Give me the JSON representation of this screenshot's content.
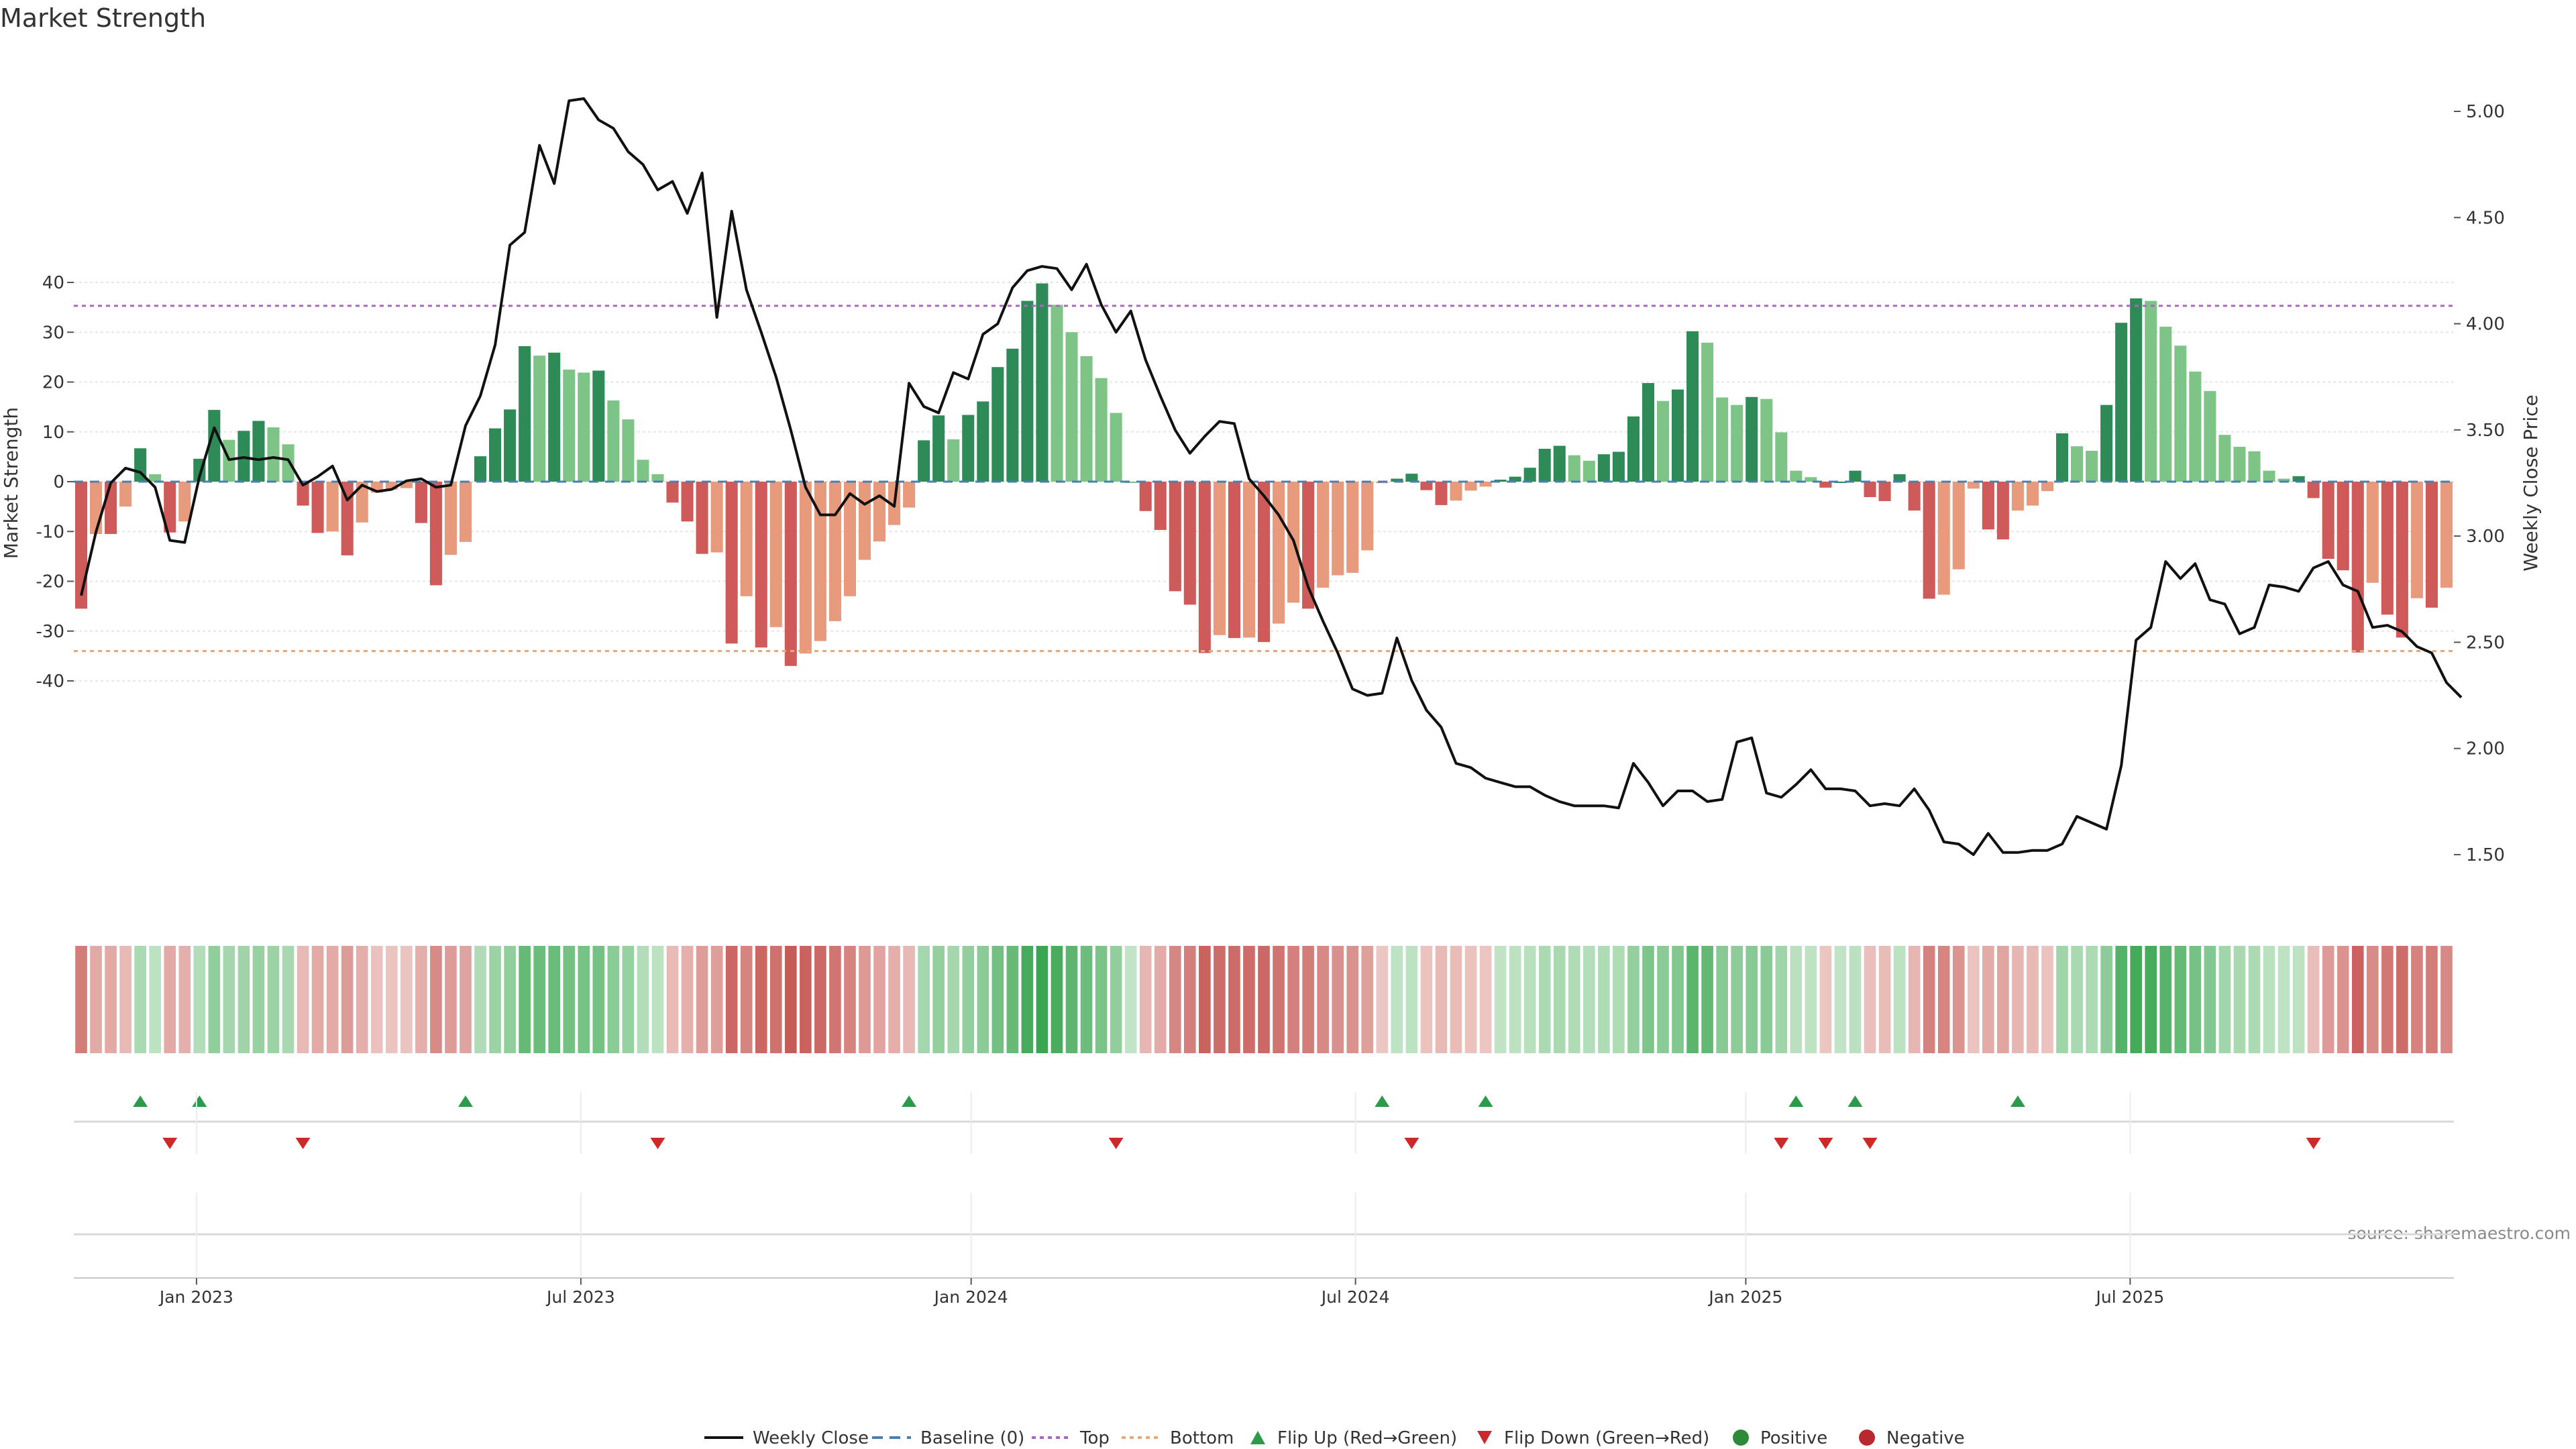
{
  "chart_data": {
    "type": "bar",
    "title": "Market Strength",
    "ylabel": "Market Strength",
    "y2label": "Weekly Close Price",
    "ylim": [
      -43,
      40
    ],
    "y2lim": [
      1.36,
      5.22
    ],
    "yticks": [
      40,
      30,
      20,
      10,
      0,
      -10,
      -20,
      -30,
      -40
    ],
    "y2ticks": [
      5.0,
      4.5,
      4.0,
      3.5,
      3.0,
      2.5,
      2.0,
      1.5
    ],
    "top_threshold": 35.3,
    "bottom_threshold": -34.0,
    "x_ticks": [
      "Jan 2023",
      "Jul 2023",
      "Jan 2024",
      "Jul 2024",
      "Jan 2025",
      "Jul 2025"
    ],
    "x_tick_week_index": [
      8.3,
      34.3,
      60.7,
      86.7,
      113.1,
      139.1
    ],
    "strength": [
      -25.5,
      -10.5,
      -10.5,
      -5,
      6.7,
      1.5,
      -10.2,
      -8,
      4.6,
      14.4,
      8.4,
      10.2,
      12.2,
      10.9,
      7.5,
      -4.8,
      -10.3,
      -10,
      -14.8,
      -8.2,
      -2.2,
      -1.6,
      -1.3,
      -8.3,
      -20.8,
      -14.7,
      -12.1,
      5.1,
      10.7,
      14.5,
      27.2,
      25.3,
      25.9,
      22.5,
      21.9,
      22.3,
      16.3,
      12.5,
      4.4,
      1.5,
      -4.2,
      -8,
      -14.5,
      -14.2,
      -32.5,
      -23,
      -33.3,
      -29.2,
      -37,
      -34.5,
      -32,
      -28,
      -23,
      -15.7,
      -12,
      -8.7,
      -5.2,
      8.3,
      13.3,
      8.5,
      13.4,
      16.1,
      23,
      26.7,
      36.3,
      39.8,
      35.5,
      30,
      25.2,
      20.8,
      13.8,
      0,
      -5.9,
      -9.7,
      -22,
      -24.7,
      -34.4,
      -30.8,
      -31.4,
      -31.3,
      -32.2,
      -28.5,
      -24.3,
      -25.5,
      -21.3,
      -18.8,
      -18.3,
      -13.8,
      -0.3,
      0.6,
      1.6,
      -1.7,
      -4.7,
      -3.8,
      -1.8,
      -1,
      0.4,
      1,
      2.8,
      6.6,
      7.2,
      5.3,
      4.2,
      5.5,
      6,
      13.1,
      19.8,
      16.2,
      18.5,
      30.2,
      27.9,
      16.9,
      15.4,
      17,
      16.6,
      9.9,
      2.2,
      0.9,
      -1.2,
      0,
      2.2,
      -3.1,
      -3.9,
      1.5,
      -5.8,
      -23.5,
      -22.7,
      -17.6,
      -1.4,
      -9.6,
      -11.6,
      -5.8,
      -4.8,
      -1.9,
      9.7,
      7.1,
      6.2,
      15.4,
      31.9,
      36.8,
      36.3,
      31.1,
      27.3,
      22.1,
      18.2,
      9.4,
      7,
      6.1,
      2.2,
      0.6,
      1.1,
      -3.3,
      -15.5,
      -17.8,
      -34.3,
      -20.3,
      -26.7,
      -31.3,
      -23.4,
      -25.3,
      -21.3
    ],
    "weekly_close": [
      2.72,
      3.02,
      3.25,
      3.32,
      3.3,
      3.23,
      2.98,
      2.97,
      3.28,
      3.51,
      3.36,
      3.37,
      3.36,
      3.37,
      3.36,
      3.24,
      3.28,
      3.33,
      3.17,
      3.24,
      3.21,
      3.22,
      3.26,
      3.27,
      3.23,
      3.24,
      3.52,
      3.66,
      3.9,
      4.37,
      4.43,
      4.84,
      4.66,
      5.05,
      5.06,
      4.96,
      4.92,
      4.81,
      4.75,
      4.63,
      4.67,
      4.52,
      4.71,
      4.03,
      4.53,
      4.16,
      3.96,
      3.75,
      3.5,
      3.23,
      3.1,
      3.1,
      3.2,
      3.15,
      3.19,
      3.14,
      3.72,
      3.61,
      3.58,
      3.77,
      3.74,
      3.95,
      4.0,
      4.17,
      4.25,
      4.27,
      4.26,
      4.16,
      4.28,
      4.09,
      3.96,
      4.06,
      3.83,
      3.66,
      3.5,
      3.39,
      3.47,
      3.54,
      3.53,
      3.27,
      3.19,
      3.1,
      2.98,
      2.76,
      2.6,
      2.45,
      2.28,
      2.25,
      2.26,
      2.52,
      2.32,
      2.18,
      2.1,
      1.93,
      1.91,
      1.86,
      1.84,
      1.82,
      1.82,
      1.78,
      1.75,
      1.73,
      1.73,
      1.73,
      1.72,
      1.93,
      1.84,
      1.73,
      1.8,
      1.8,
      1.75,
      1.76,
      2.03,
      2.05,
      1.79,
      1.77,
      1.83,
      1.9,
      1.81,
      1.81,
      1.8,
      1.73,
      1.74,
      1.73,
      1.81,
      1.71,
      1.56,
      1.55,
      1.5,
      1.6,
      1.51,
      1.51,
      1.52,
      1.52,
      1.55,
      1.68,
      1.65,
      1.62,
      1.92,
      2.51,
      2.57,
      2.88,
      2.8,
      2.87,
      2.7,
      2.68,
      2.54,
      2.57,
      2.77,
      2.76,
      2.74,
      2.85,
      2.88,
      2.77,
      2.74,
      2.57,
      2.58,
      2.55,
      2.48,
      2.45,
      2.31,
      2.24
    ],
    "flip_up_week_index": [
      4,
      8,
      26,
      56,
      88,
      95,
      116,
      120,
      131
    ],
    "flip_down_week_index": [
      6,
      15,
      39,
      70,
      90,
      115,
      118,
      121,
      151
    ],
    "legend": [
      "Weekly Close",
      "Baseline (0)",
      "Top",
      "Bottom",
      "Flip Up (Red→Green)",
      "Flip Down (Green→Red)",
      "Positive",
      "Negative"
    ],
    "legend_position": "bottom-center",
    "source": "source: sharemaestro.com"
  },
  "colors": {
    "pos_dark": "#2e8a57",
    "pos_light": "#7ec487",
    "neg_dark": "#cf5a5a",
    "neg_light": "#e89a7c",
    "top_line": "#a868c0",
    "bottom_line": "#e8a878",
    "baseline": "#4a7fb0",
    "flip_up": "#2c9a48",
    "flip_down": "#cc2a2a",
    "positive_dot": "#2c8a3a",
    "negative_dot": "#b8282e"
  }
}
